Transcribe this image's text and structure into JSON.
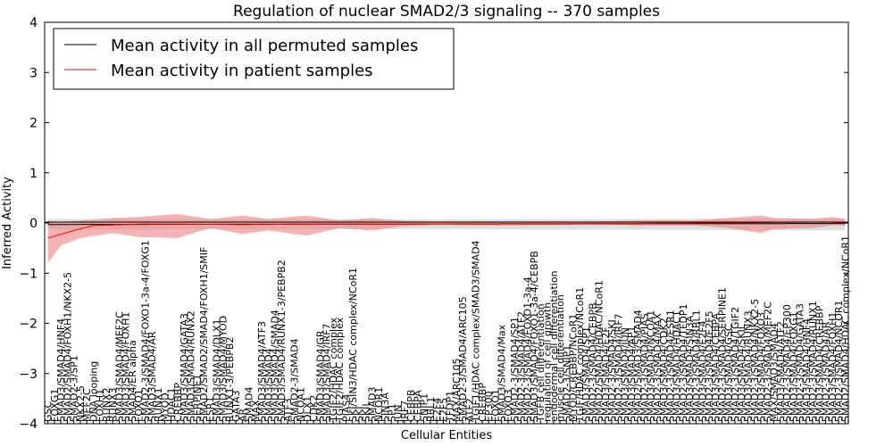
{
  "chart_data": {
    "type": "line",
    "title": "Regulation of nuclear SMAD2/3 signaling -- 370 samples",
    "xlabel": "Cellular Entities",
    "ylabel": "Inferred Activity",
    "ylim": [
      -4,
      4
    ],
    "yticks": [
      "4",
      "3",
      "2",
      "1",
      "0",
      "−1",
      "−2",
      "−3",
      "−4"
    ],
    "legend_position": "top-left",
    "grid": false,
    "n_points": 124,
    "series": [
      {
        "name": "Mean activity in all permuted samples",
        "color": "#000000",
        "line_keypoints": [
          [
            0,
            -0.03
          ],
          [
            123,
            -0.01
          ]
        ],
        "band_color": "#c0c0c0",
        "band_keypoints": [
          [
            0,
            -0.13,
            0.08
          ],
          [
            60,
            -0.12,
            0.07
          ],
          [
            123,
            -0.15,
            0.09
          ]
        ]
      },
      {
        "name": "Mean activity in patient samples",
        "color": "#ff0000",
        "line_keypoints": [
          [
            0,
            -0.3
          ],
          [
            4,
            -0.15
          ],
          [
            7,
            -0.05
          ],
          [
            15,
            -0.02
          ],
          [
            30,
            -0.03
          ],
          [
            50,
            -0.02
          ],
          [
            90,
            -0.01
          ],
          [
            120,
            0.02
          ],
          [
            123,
            0.0
          ]
        ],
        "band_color": "#f08080",
        "band_keypoints": [
          [
            0,
            -0.8,
            0.05
          ],
          [
            2,
            -0.45,
            0.02
          ],
          [
            5,
            -0.3,
            0.05
          ],
          [
            10,
            -0.2,
            0.1
          ],
          [
            14,
            -0.28,
            0.12
          ],
          [
            20,
            -0.3,
            0.18
          ],
          [
            25,
            -0.1,
            0.08
          ],
          [
            30,
            -0.22,
            0.15
          ],
          [
            34,
            -0.15,
            0.08
          ],
          [
            40,
            -0.25,
            0.15
          ],
          [
            45,
            -0.1,
            0.05
          ],
          [
            50,
            -0.15,
            0.1
          ],
          [
            55,
            -0.06,
            0.04
          ],
          [
            60,
            -0.04,
            0.03
          ],
          [
            70,
            -0.05,
            0.03
          ],
          [
            85,
            -0.03,
            0.03
          ],
          [
            92,
            -0.05,
            0.05
          ],
          [
            100,
            -0.05,
            0.05
          ],
          [
            105,
            -0.1,
            0.1
          ],
          [
            110,
            -0.2,
            0.15
          ],
          [
            112,
            -0.12,
            0.1
          ],
          [
            118,
            -0.1,
            0.08
          ],
          [
            121,
            -0.05,
            0.12
          ],
          [
            123,
            -0.05,
            0.08
          ]
        ]
      }
    ],
    "categories": [
      "GSC",
      "FOXG1",
      "SMAD3/SMAD4/HNF4",
      "SMAD2/SMAD4/FOXH1/NKX2-5",
      "SMAD2-3/SP1",
      "NKX2-5",
      "MEF2C",
      "DNA looping",
      "FOXH1",
      "RUNX2",
      "RUNX3",
      "SMAD3/SMAD4/MEF2C",
      "SMAD3/SMAD4/FOXH1",
      "SMAD4/ER alpha",
      "FOXO1",
      "SMAD2-3/SMAD4/FOXO1-3a-4/FOXG1",
      "SMAD3/SMAD4/AR",
      "RUNX1",
      "MYOD",
      "HDAC1",
      "CREBBP",
      "SMAD3/SMAD4/GATA3",
      "SMAD3/SMAD4/RUNX2",
      "SERPINE1",
      "SMAD2/SMAD2/SMAD4/FOXH1/SMIF",
      "ESR1",
      "SMAD3/SMAD4/DLX1",
      "SMAD3/SMAD4/MYOD",
      "RUNX1-3/PEBPB2",
      "GATA3",
      "AR",
      "SMAD4",
      "MAX",
      "SMAD3/SMAD4/ATF3",
      "SMAD3/SMAD4",
      "SMAD3/SMAD4/SMAD4",
      "SMAD3/SMAD4/RUNX1-3/PEBPB2",
      "ATF3",
      "SMAD2-3/SMAD4",
      "NCOA1",
      "DLX1",
      "CDK2",
      "SMAD3/SMAD4/GR",
      "SMAD3/SMAD4/IRF7",
      "TGIF2/HDAC complex",
      "TGIF2/HDAC complex",
      "PIAS4",
      "SKI/SIN3/HDAC complex/NCoR1",
      "SKI",
      "SKIL",
      "SMAD3",
      "NCOR1",
      "SIN3A",
      "SP1",
      "JUN",
      "IRF7",
      "CEBPB",
      "CEBPA",
      "SNIP1",
      "RBL1",
      "E2F4",
      "E2F5",
      "TFDP1",
      "MAX/ARC105",
      "SMAD2-3/SMAD4/ARC105",
      "ATF2",
      "TGIF1/HDAC complex/SMAD3/SMAD4",
      "CREBBP",
      "EP300",
      "FOXO1",
      "SMAD3/SMAD4/Max",
      "FOXO3",
      "SMAD2-3/SMAD4/SP1",
      "SMAD2-3/SMAD4/ATF2",
      "SMAD2-3/SMAD4/FOXO1-3a-4",
      "SMAD3/SMAD4/FOXO1-3a-4/CEBPB",
      "TGFB cell differentiation",
      "regulation of cell growth",
      "endodermal cell differentiation",
      "muscle cell differentiation",
      "SMAD2-3/SNIP1",
      "MYOD/CREBBP/NCoR1",
      "TGIF/HDAC complex/NCoR1",
      "SMAD3/SMAD4/SP1",
      "SMAD2-3/SMAD4/CEBPB",
      "SMAD2/SMAD4/HDAC/NCoR1",
      "SMAD3/SMAD4/E2F",
      "SMAD2-3/SMAD4/SKI",
      "SMAD2-3/SMAD4/IRF7",
      "SMAD3/SMAD4/JUN",
      "SMAD3/SMAD4/AP1",
      "SMAD2/SMAD3/SMAD4",
      "SMAD2-3/SMAD4/PIAS",
      "SMAD3/SMAD4/NCOA1",
      "SMAD2-3/SMAD4/MAX",
      "SMAD3/SMAD4/CDK2",
      "SMAD2-3/SMAD4/ESR1",
      "SMAD3/SMAD4/HDAC1",
      "SMAD2-3/SMAD4/TFDP1",
      "SMAD3/SMAD4/SIN3A",
      "SMAD2-3/SMAD4/RBL1",
      "SMAD3/SMAD4/E2F4",
      "SMAD2-3/SMAD4/E2F5",
      "SMAD3/SMAD4/CEBPA",
      "SMAD2-3/SMAD4/SERPINE1",
      "SMAD3/SMAD4/GSC",
      "SMAD2-3/SMAD4/TGIF2",
      "SMAD3/SMAD4/SKIL",
      "SMAD3/SMAD4/RUNX3",
      "SMAD2-3/SMAD4/NKX2-5",
      "SMAD3/SMAD4/FOXO3",
      "SMAD2-3/SMAD4/MEF2C",
      "MAX/SMAD3/SMAD4",
      "SMAD3/SMAD4/ATF2",
      "SMAD2-3/SMAD4/EP300",
      "SMAD3/SMAD4/FOXG1",
      "SMAD2-3/SMAD4/GATA3",
      "SMAD3/SMAD4/HNF4",
      "SMAD2-3/SMAD4/RUNX1",
      "SMAD3/SMAD4/CREBBP",
      "SMAD2-3/SMAD4/AR",
      "SMAD3/SMAD4/FOXH1",
      "SMAD2-3/SMAD4/NCOR1",
      "SMAD2/SMAD4/HDAC complex/NCoR1"
    ]
  }
}
